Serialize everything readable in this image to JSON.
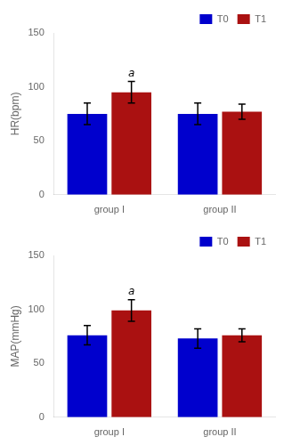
{
  "chart_data": [
    {
      "type": "bar",
      "ylabel": "HR(bpm)",
      "categories": [
        "group I",
        "group II"
      ],
      "series": [
        {
          "name": "T0",
          "color": "#0000CD",
          "values": [
            75,
            75
          ],
          "errors": [
            10,
            10
          ]
        },
        {
          "name": "T1",
          "color": "#AA1111",
          "values": [
            95,
            77
          ],
          "errors": [
            10,
            7
          ]
        }
      ],
      "annotations": [
        {
          "text": "a",
          "category": "group I",
          "series": "T1"
        }
      ],
      "ylim": [
        0,
        150
      ],
      "yticks": [
        0,
        50,
        100,
        150
      ],
      "grid": false,
      "legend": "upper right"
    },
    {
      "type": "bar",
      "ylabel": "MAP(mmHg)",
      "categories": [
        "group I",
        "group II"
      ],
      "series": [
        {
          "name": "T0",
          "color": "#0000CD",
          "values": [
            76,
            73
          ],
          "errors": [
            9,
            9
          ]
        },
        {
          "name": "T1",
          "color": "#AA1111",
          "values": [
            99,
            76
          ],
          "errors": [
            10,
            6
          ]
        }
      ],
      "annotations": [
        {
          "text": "a",
          "category": "group I",
          "series": "T1"
        }
      ],
      "ylim": [
        0,
        150
      ],
      "yticks": [
        0,
        50,
        100,
        150
      ],
      "grid": false,
      "legend": "upper right"
    }
  ]
}
